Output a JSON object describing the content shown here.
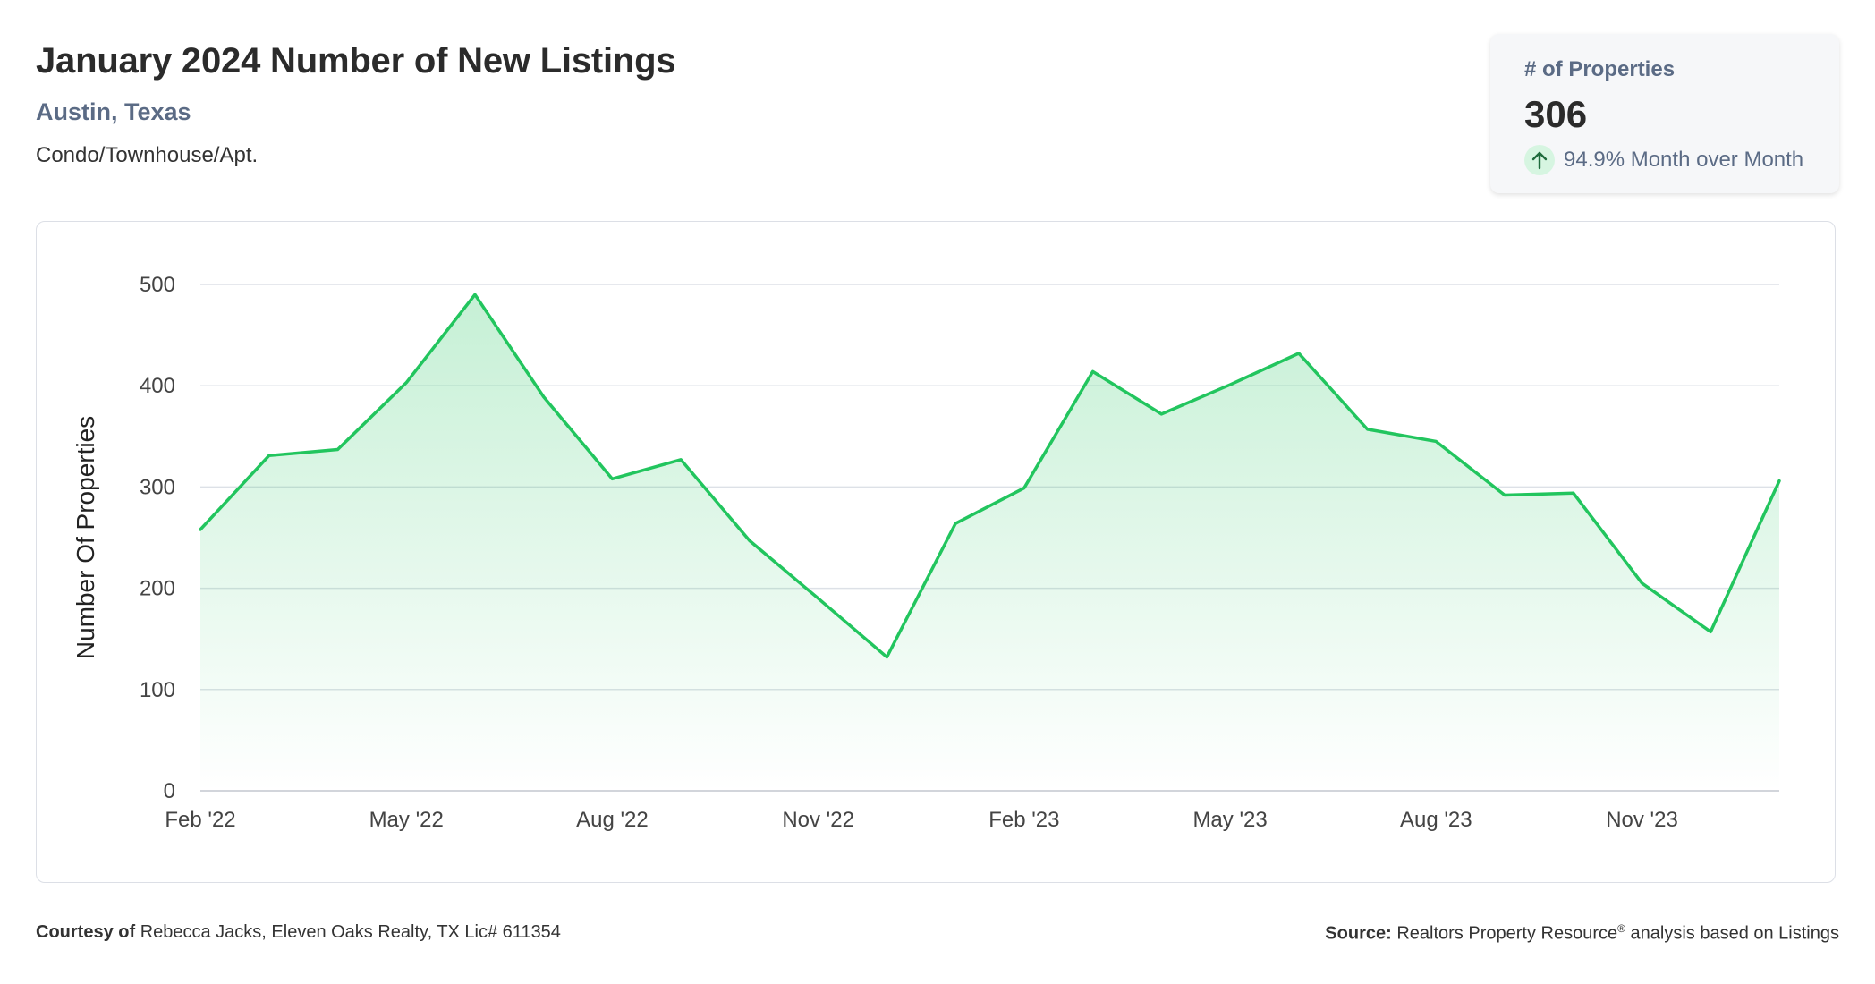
{
  "header": {
    "title": "January 2024 Number of New Listings",
    "location": "Austin, Texas",
    "property_type": "Condo/Townhouse/Apt."
  },
  "stat_card": {
    "label": "# of Properties",
    "value": "306",
    "change_text": "94.9% Month over Month",
    "change_icon": "arrow-up-icon"
  },
  "footer": {
    "courtesy_label": "Courtesy of",
    "courtesy_text": "Rebecca Jacks, Eleven Oaks Realty, TX Lic# 611354",
    "source_label": "Source:",
    "source_text": "Realtors Property Resource",
    "source_sup": "®",
    "source_suffix": " analysis based on Listings"
  },
  "colors": {
    "line": "#22c55e",
    "fill": "#22c55e",
    "grid": "#dde1e7",
    "axis_text": "#444444",
    "accent_label": "#5b6b85"
  },
  "chart_data": {
    "type": "area",
    "ylabel": "Number Of Properties",
    "ylim": [
      0,
      500
    ],
    "yticks": [
      0,
      100,
      200,
      300,
      400,
      500
    ],
    "x": [
      "Feb '22",
      "Mar '22",
      "Apr '22",
      "May '22",
      "Jun '22",
      "Jul '22",
      "Aug '22",
      "Sep '22",
      "Oct '22",
      "Nov '22",
      "Dec '22",
      "Jan '23",
      "Feb '23",
      "Mar '23",
      "Apr '23",
      "May '23",
      "Jun '23",
      "Jul '23",
      "Aug '23",
      "Sep '23",
      "Oct '23",
      "Nov '23",
      "Dec '23",
      "Jan '24"
    ],
    "xtick_labels": [
      "Feb '22",
      "May '22",
      "Aug '22",
      "Nov '22",
      "Feb '23",
      "May '23",
      "Aug '23",
      "Nov '23"
    ],
    "series": [
      {
        "values": [
          258,
          331,
          337,
          403,
          490,
          389,
          308,
          327,
          247,
          190,
          132,
          264,
          299,
          414,
          372,
          401,
          432,
          357,
          345,
          292,
          294,
          205,
          157,
          306
        ]
      }
    ],
    "grid": true,
    "legend": "none"
  }
}
